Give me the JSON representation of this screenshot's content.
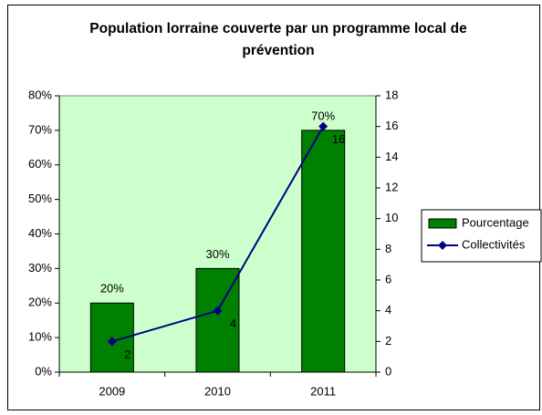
{
  "chart_data": {
    "type": "bar",
    "title": "Population lorraine couverte par un programme local de prévention",
    "categories": [
      "2009",
      "2010",
      "2011"
    ],
    "series": [
      {
        "name": "Pourcentage",
        "type": "bar",
        "color": "#008000",
        "values": [
          20,
          30,
          70
        ],
        "value_labels": [
          "20%",
          "30%",
          "70%"
        ]
      },
      {
        "name": "Collectivités",
        "type": "line",
        "axis": "y2",
        "color": "#000080",
        "values": [
          2,
          4,
          16
        ]
      }
    ],
    "ylim": [
      0,
      80
    ],
    "yticks": [
      {
        "value": 0,
        "label": "0%"
      },
      {
        "value": 10,
        "label": "10%"
      },
      {
        "value": 20,
        "label": "20%"
      },
      {
        "value": 30,
        "label": "30%"
      },
      {
        "value": 40,
        "label": "40%"
      },
      {
        "value": 50,
        "label": "50%"
      },
      {
        "value": 60,
        "label": "60%"
      },
      {
        "value": 70,
        "label": "70%"
      },
      {
        "value": 80,
        "label": "80%"
      }
    ],
    "y2lim": [
      0,
      18
    ],
    "y2ticks": [
      0,
      2,
      4,
      6,
      8,
      10,
      12,
      14,
      16,
      18
    ],
    "plot_background": "#ccffcc",
    "legend": "right"
  }
}
